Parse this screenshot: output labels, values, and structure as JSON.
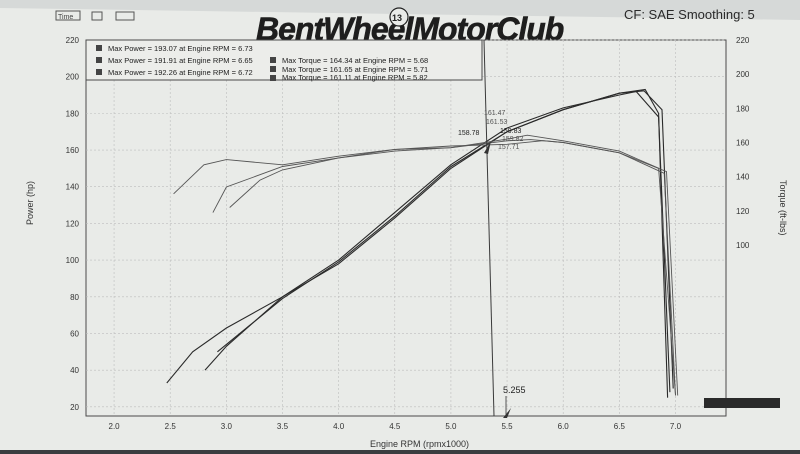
{
  "header": {
    "title": "BentWheelMotorClub",
    "badge": "13",
    "settings": "CF: SAE Smoothing: 5",
    "time_label": "Time"
  },
  "legend": {
    "power": [
      "Max Power = 193.07 at Engine RPM = 6.73",
      "Max Power = 191.91 at Engine RPM = 6.65",
      "Max Power = 192.26 at Engine RPM = 6.72"
    ],
    "torque": [
      "Max Torque = 164.34 at Engine RPM = 5.68",
      "Max Torque = 161.65 at Engine RPM = 5.71",
      "Max Torque = 161.11 at Engine RPM = 5.82"
    ]
  },
  "cursor_labels": {
    "rpm": "5.255",
    "values": [
      "158.78",
      "161.47",
      "161.53",
      "159.83",
      "159.82",
      "157.71"
    ]
  },
  "colors": {
    "paper": "#ecedea",
    "ink": "#2c2c2c",
    "trace": "#3a3a3a"
  },
  "chart_data": {
    "type": "line",
    "xlabel": "Engine RPM (rpmx1000)",
    "ylabel": "Power (hp)",
    "y2label": "Torque (ft-lbs)",
    "xlim": [
      1.75,
      7.45
    ],
    "ylim": [
      15,
      220
    ],
    "y2lim": [
      0,
      220
    ],
    "xticks": [
      "2.0",
      "2.5",
      "3.0",
      "3.5",
      "4.0",
      "4.5",
      "5.0",
      "5.5",
      "6.0",
      "6.5",
      "7.0"
    ],
    "yticks": [
      "20",
      "40",
      "60",
      "80",
      "100",
      "120",
      "140",
      "160",
      "180",
      "200",
      "220"
    ],
    "y2ticks": [
      "100",
      "120",
      "140",
      "160",
      "180",
      "200",
      "220"
    ],
    "grid": true,
    "series": [
      {
        "kind": "power",
        "x": [
          2.47,
          2.7,
          3.0,
          3.5,
          4.0,
          4.5,
          5.0,
          5.5,
          6.0,
          6.5,
          6.73,
          6.85,
          6.93
        ],
        "y": [
          33,
          50,
          63,
          80,
          98,
          123,
          150,
          170,
          182,
          191,
          193,
          180,
          25
        ]
      },
      {
        "kind": "power",
        "x": [
          2.81,
          3.0,
          3.5,
          4.0,
          4.5,
          5.0,
          5.5,
          6.0,
          6.5,
          6.65,
          6.85,
          6.95
        ],
        "y": [
          40,
          53,
          80,
          100,
          126,
          152,
          172,
          183,
          190,
          191.9,
          178,
          28
        ]
      },
      {
        "kind": "power",
        "x": [
          2.92,
          3.2,
          3.5,
          4.0,
          4.5,
          5.0,
          5.5,
          6.0,
          6.5,
          6.72,
          6.88,
          6.98
        ],
        "y": [
          50,
          64,
          79,
          99,
          124,
          151,
          170,
          182,
          191,
          192.3,
          182,
          30
        ]
      },
      {
        "kind": "torque",
        "x": [
          2.53,
          2.8,
          3.0,
          3.5,
          4.0,
          4.5,
          5.0,
          5.5,
          5.68,
          6.0,
          6.5,
          6.85,
          7.0
        ],
        "y": [
          130,
          147,
          150,
          147,
          152,
          156,
          157,
          162,
          164.3,
          161,
          155,
          145,
          12
        ]
      },
      {
        "kind": "torque",
        "x": [
          2.88,
          3.0,
          3.5,
          4.0,
          4.5,
          5.0,
          5.5,
          5.71,
          6.0,
          6.5,
          6.9,
          7.0
        ],
        "y": [
          119,
          134,
          146,
          151,
          155,
          157,
          161,
          161.7,
          160,
          154,
          142,
          12
        ]
      },
      {
        "kind": "torque",
        "x": [
          3.03,
          3.3,
          3.5,
          4.0,
          4.5,
          5.0,
          5.5,
          5.82,
          6.0,
          6.5,
          6.92,
          7.02
        ],
        "y": [
          122,
          138,
          144,
          151,
          156,
          158,
          159,
          161.1,
          160,
          154,
          143,
          12
        ]
      }
    ]
  }
}
